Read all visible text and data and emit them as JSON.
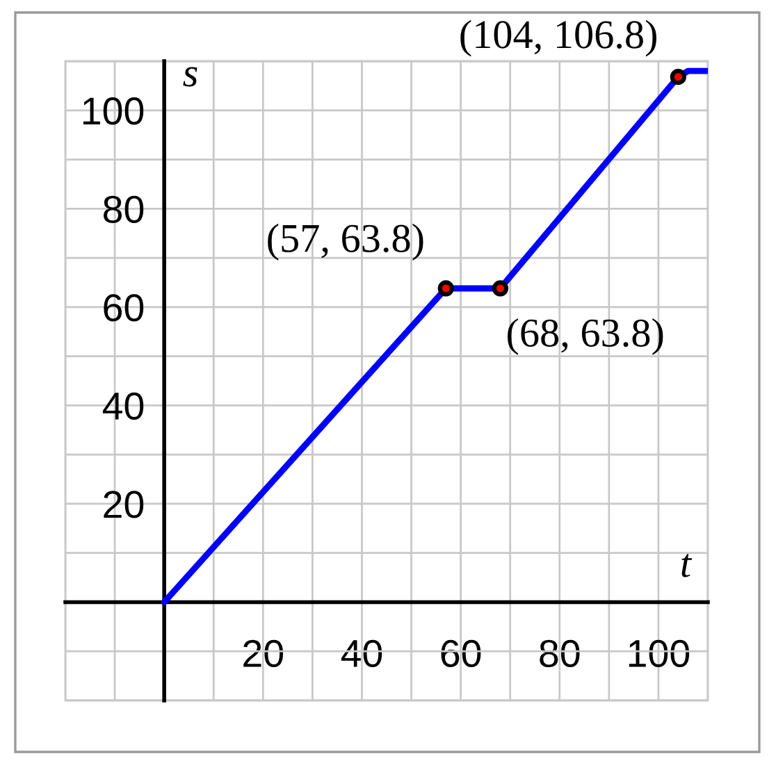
{
  "chart_data": {
    "type": "line",
    "xlabel": "t",
    "ylabel": "s",
    "xlim": [
      -20,
      110
    ],
    "ylim": [
      -20,
      110
    ],
    "xticks": [
      20,
      40,
      60,
      80,
      100
    ],
    "yticks": [
      20,
      40,
      60,
      80,
      100
    ],
    "grid": true,
    "series": [
      {
        "color": "#0000ff",
        "x": [
          0,
          57,
          68,
          104,
          106,
          110
        ],
        "values": [
          0,
          63.8,
          63.8,
          106.8,
          108,
          108
        ]
      },
      {
        "type": "scatter",
        "color": "#ff0000",
        "marker": "circle",
        "x": [
          57,
          68,
          104
        ],
        "values": [
          63.8,
          63.8,
          106.8
        ]
      }
    ],
    "annotations": [
      {
        "text": "(57, 63.8)",
        "x": 57,
        "y": 63.8
      },
      {
        "text": "(68, 63.8)",
        "x": 68,
        "y": 63.8
      },
      {
        "text": "(104, 106.8)",
        "x": 104,
        "y": 106.8
      }
    ]
  }
}
